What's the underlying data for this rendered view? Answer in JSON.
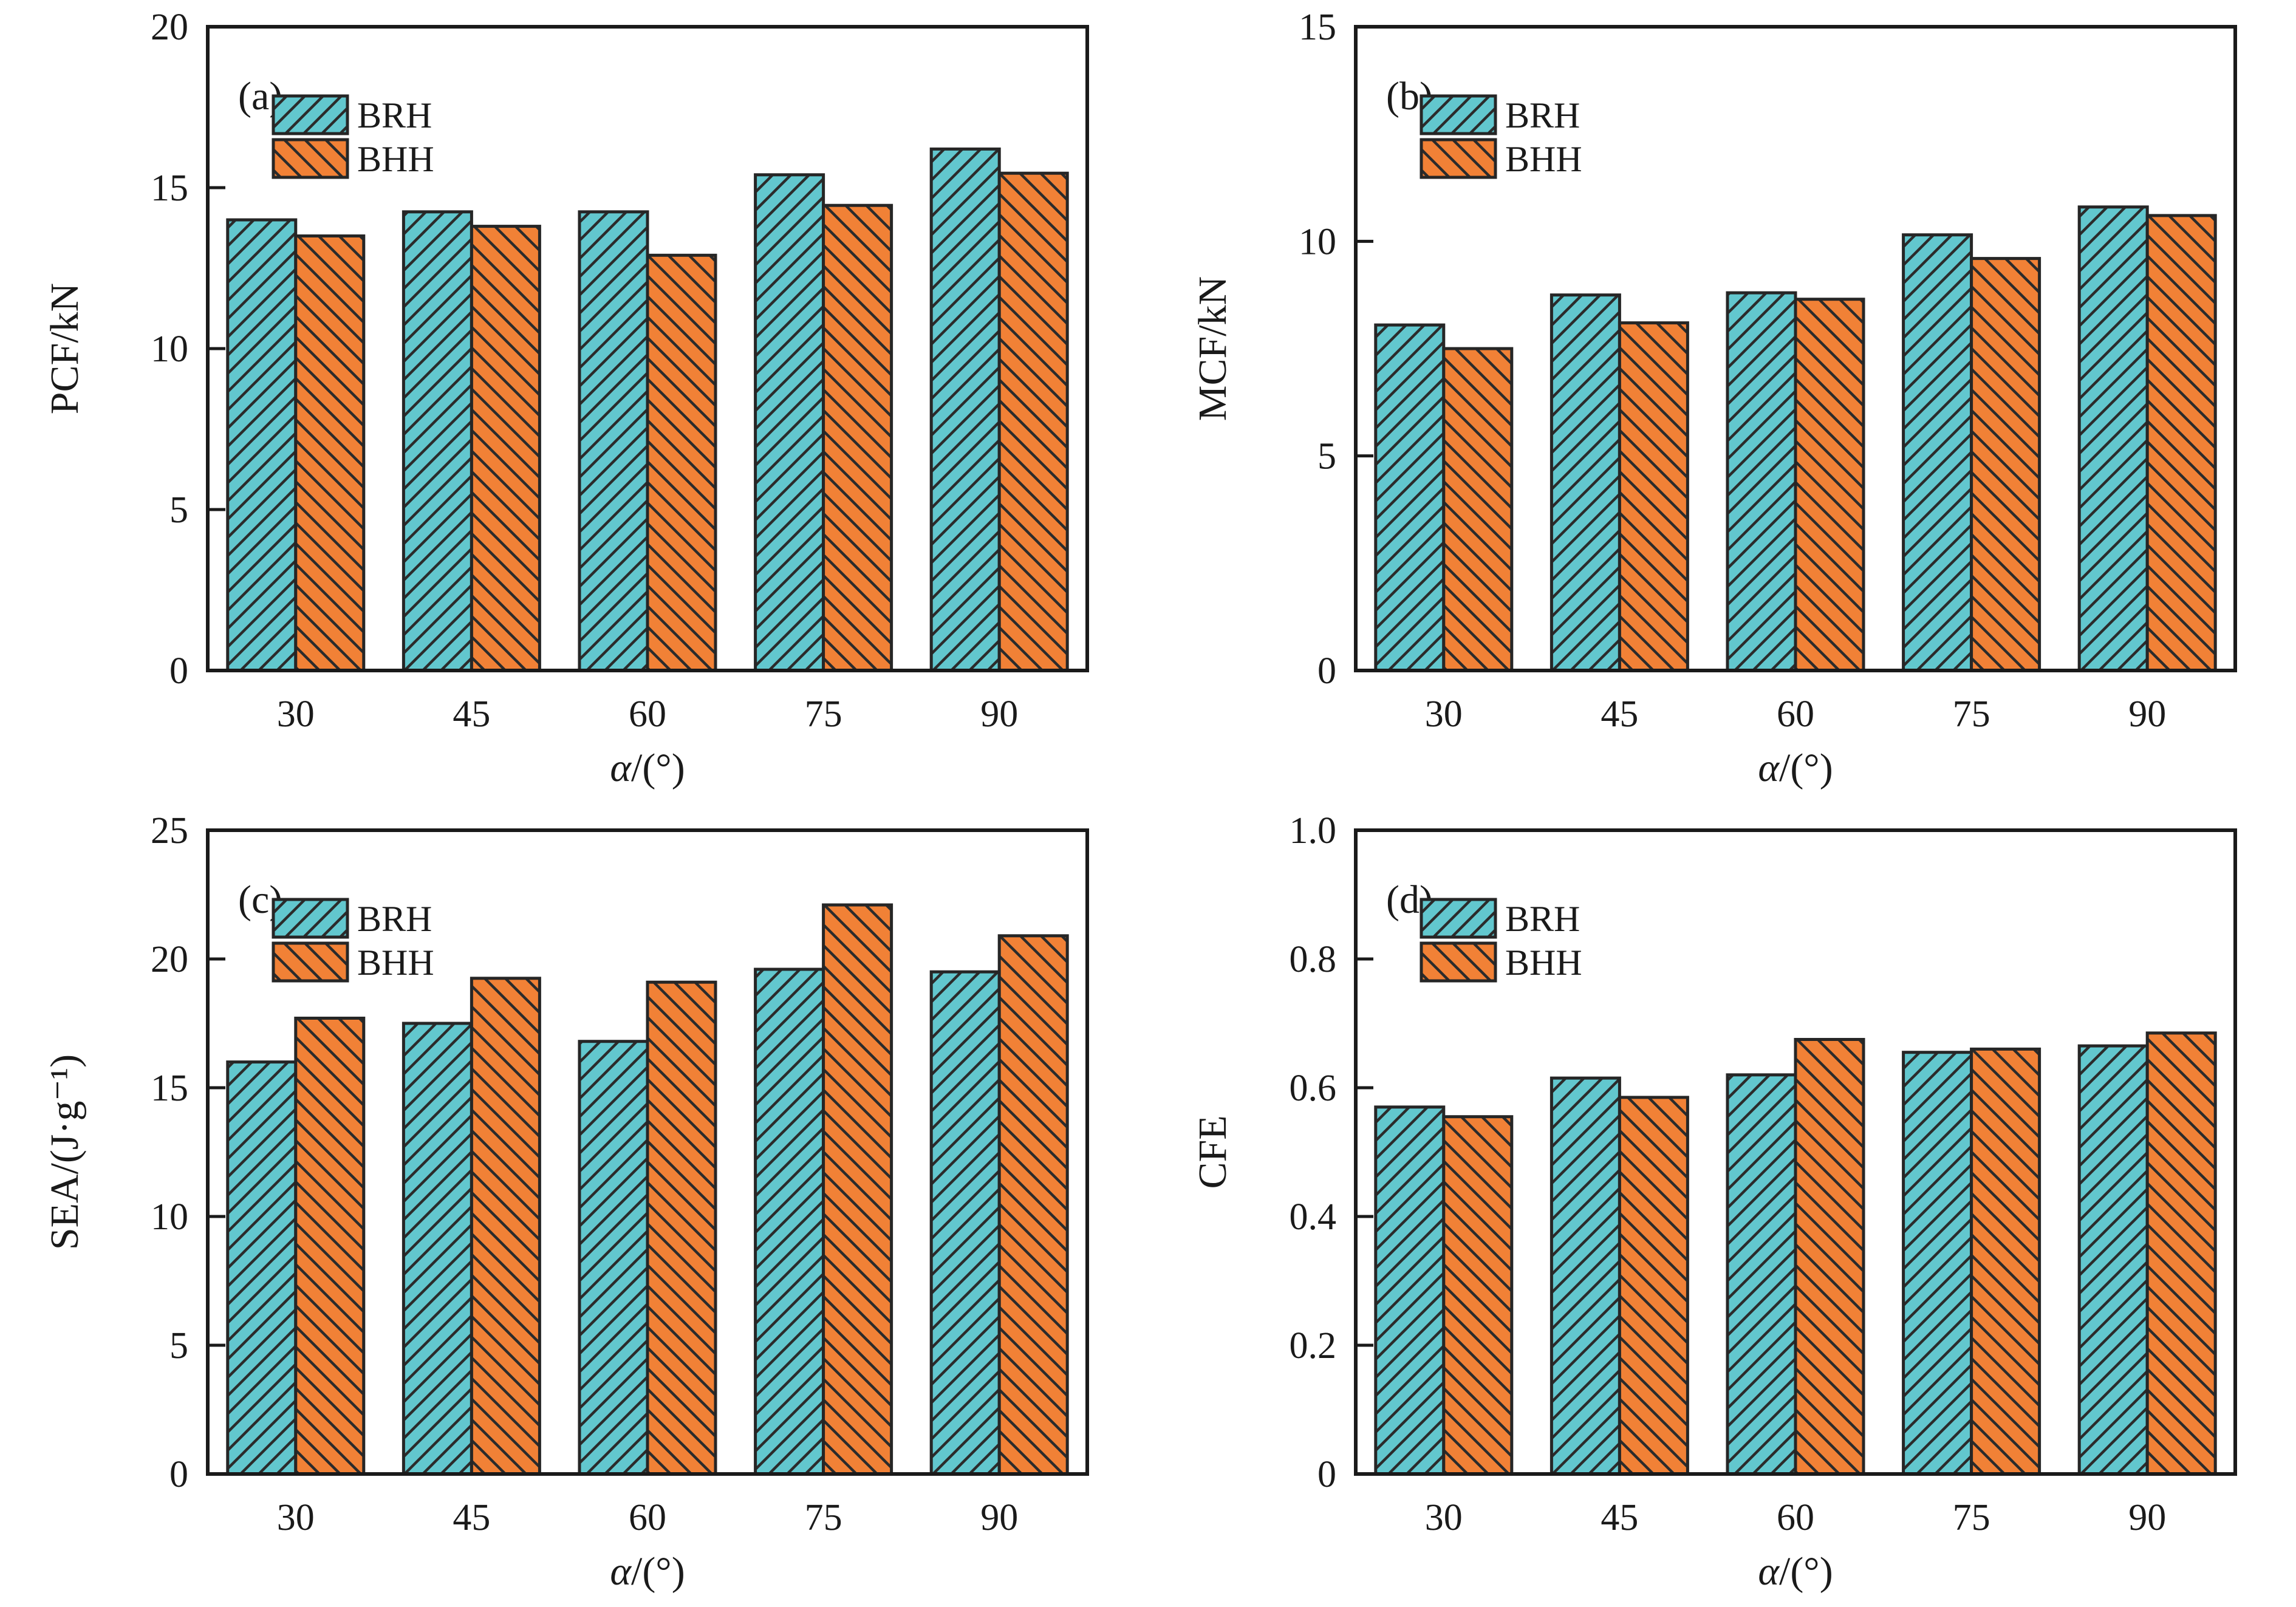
{
  "figure": {
    "series_labels": [
      "BRH",
      "BHH"
    ],
    "xlabel": "α/(°)",
    "categories": [
      "30",
      "45",
      "60",
      "75",
      "90"
    ],
    "colors": {
      "brh_fill": "#62C7CE",
      "bhh_fill": "#F18136",
      "hatch_line": "#2b2b2b",
      "bar_edge": "#262626",
      "axis": "#1a1a1a",
      "text": "#1a1a1a",
      "background": "#ffffff"
    },
    "hatch_direction": {
      "BRH": "/",
      "BHH": "\\"
    },
    "legend_position": "upper-left",
    "grid": false
  },
  "chart_data": [
    {
      "type": "bar",
      "panel_label": "(a)",
      "xlabel": "α/(°)",
      "ylabel": "PCF/kN",
      "categories": [
        "30",
        "45",
        "60",
        "75",
        "90"
      ],
      "ylim": [
        0,
        20
      ],
      "ytick_step": 5,
      "ytick_labels": [
        "0",
        "5",
        "10",
        "15",
        "20"
      ],
      "legend": [
        "BRH",
        "BHH"
      ],
      "series": [
        {
          "name": "BRH",
          "values": [
            14.0,
            14.25,
            14.25,
            15.4,
            16.2
          ]
        },
        {
          "name": "BHH",
          "values": [
            13.5,
            13.8,
            12.9,
            14.45,
            15.45
          ]
        }
      ]
    },
    {
      "type": "bar",
      "panel_label": "(b)",
      "xlabel": "α/(°)",
      "ylabel": "MCF/kN",
      "categories": [
        "30",
        "45",
        "60",
        "75",
        "90"
      ],
      "ylim": [
        0,
        15
      ],
      "ytick_step": 5,
      "ytick_labels": [
        "0",
        "5",
        "10",
        "15"
      ],
      "legend": [
        "BRH",
        "BHH"
      ],
      "series": [
        {
          "name": "BRH",
          "values": [
            8.05,
            8.75,
            8.8,
            10.15,
            10.8
          ]
        },
        {
          "name": "BHH",
          "values": [
            7.5,
            8.1,
            8.65,
            9.6,
            10.6
          ]
        }
      ]
    },
    {
      "type": "bar",
      "panel_label": "(c)",
      "xlabel": "α/(°)",
      "ylabel": "SEA/(J·g⁻¹)",
      "categories": [
        "30",
        "45",
        "60",
        "75",
        "90"
      ],
      "ylim": [
        0,
        25
      ],
      "ytick_step": 5,
      "ytick_labels": [
        "0",
        "5",
        "10",
        "15",
        "20",
        "25"
      ],
      "legend": [
        "BRH",
        "BHH"
      ],
      "series": [
        {
          "name": "BRH",
          "values": [
            16.0,
            17.5,
            16.8,
            19.6,
            19.5
          ]
        },
        {
          "name": "BHH",
          "values": [
            17.7,
            19.25,
            19.1,
            22.1,
            20.9
          ]
        }
      ]
    },
    {
      "type": "bar",
      "panel_label": "(d)",
      "xlabel": "α/(°)",
      "ylabel": "CFE",
      "categories": [
        "30",
        "45",
        "60",
        "75",
        "90"
      ],
      "ylim": [
        0,
        1.0
      ],
      "ytick_step": 0.2,
      "ytick_labels": [
        "0",
        "0.2",
        "0.4",
        "0.6",
        "0.8",
        "1.0"
      ],
      "legend": [
        "BRH",
        "BHH"
      ],
      "series": [
        {
          "name": "BRH",
          "values": [
            0.57,
            0.615,
            0.62,
            0.655,
            0.665
          ]
        },
        {
          "name": "BHH",
          "values": [
            0.555,
            0.585,
            0.675,
            0.66,
            0.685
          ]
        }
      ]
    }
  ]
}
